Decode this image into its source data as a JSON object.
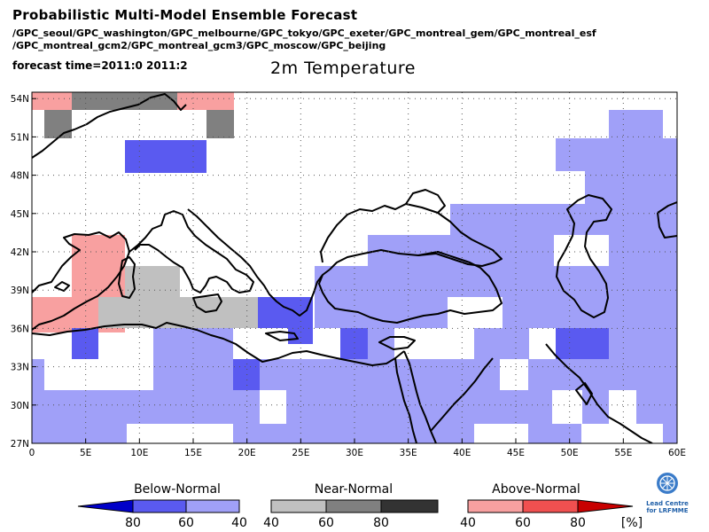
{
  "header": {
    "title": "Probabilistic Multi-Model Ensemble Forecast",
    "models_line1": "/GPC_seoul/GPC_washington/GPC_melbourne/GPC_tokyo/GPC_exeter/GPC_montreal_gem/GPC_montreal_esf",
    "models_line2": "/GPC_montreal_gcm2/GPC_montreal_gcm3/GPC_moscow/GPC_beijing",
    "forecast_time": "forecast time=2011:0 2011:2",
    "variable": "2m Temperature"
  },
  "map": {
    "lon_range": [
      0,
      60
    ],
    "lat_range": [
      27,
      54.5
    ],
    "lon_ticks": [
      "0",
      "5E",
      "10E",
      "15E",
      "20E",
      "25E",
      "30E",
      "35E",
      "40E",
      "45E",
      "50E",
      "55E",
      "60E"
    ],
    "lat_ticks": [
      "27N",
      "30N",
      "33N",
      "36N",
      "39N",
      "42N",
      "45N",
      "48N",
      "51N",
      "54N"
    ],
    "grid": "dotted"
  },
  "legend": {
    "below": {
      "title": "Below-Normal",
      "labels": [
        "80",
        "60",
        "40"
      ],
      "colors": [
        "#0000c8",
        "#5a5af0",
        "#a0a0f8"
      ]
    },
    "near": {
      "title": "Near-Normal",
      "labels": [
        "40",
        "60",
        "80"
      ],
      "colors": [
        "#c0c0c0",
        "#808080",
        "#333333"
      ]
    },
    "above": {
      "title": "Above-Normal",
      "labels": [
        "40",
        "60",
        "80"
      ],
      "colors": [
        "#f8a0a0",
        "#f05050",
        "#c80000"
      ]
    },
    "unit": "[%]"
  },
  "logo": {
    "line1": "Lead Centre",
    "line2": "for LRFMME"
  }
}
